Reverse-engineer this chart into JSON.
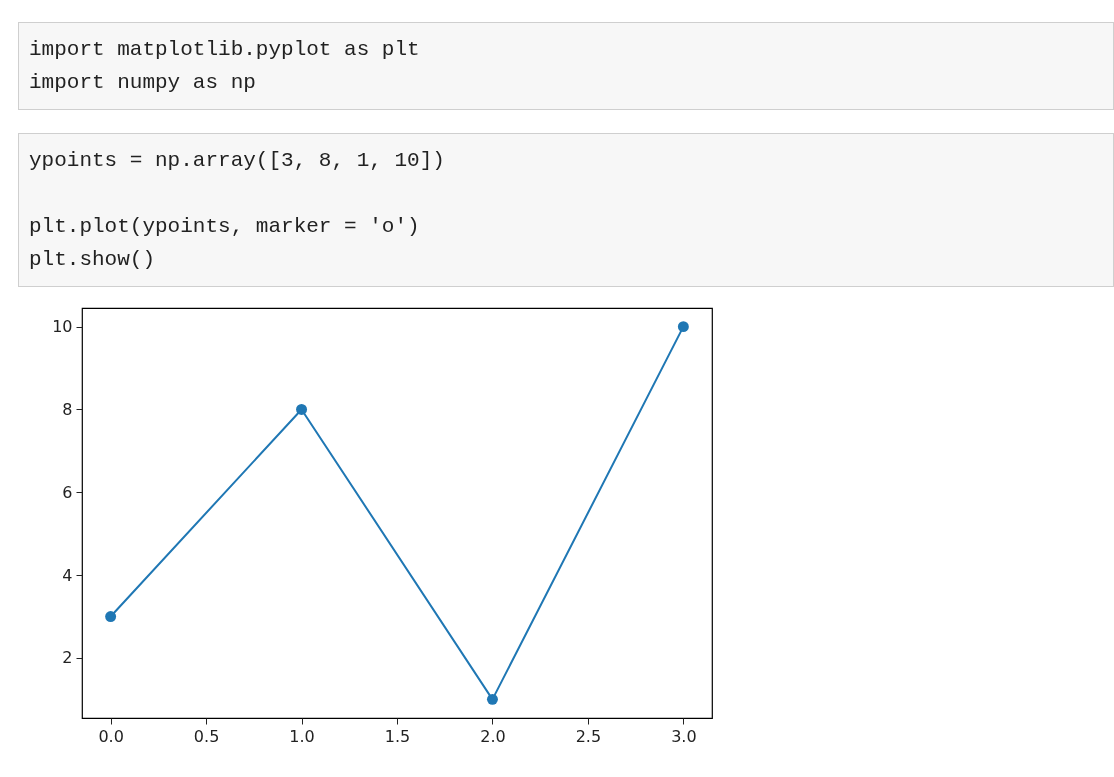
{
  "chart_data": {
    "type": "line",
    "annotations": [
      "import matplotlib.pyplot as plt\nimport numpy as np",
      "ypoints = np.array([3, 8, 1, 10])\n\nplt.plot(ypoints, marker = 'o')\nplt.show()"
    ],
    "x": [
      0,
      1,
      2,
      3
    ],
    "series": [
      {
        "color": "#1f77b4",
        "values": [
          3,
          8,
          1,
          10
        ]
      }
    ],
    "xlim": [
      -0.15,
      3.15
    ],
    "xticks": [
      {
        "value": 0,
        "label": "0.0"
      },
      {
        "value": 0.5,
        "label": "0.5"
      },
      {
        "value": 1,
        "label": "1.0"
      },
      {
        "value": 1.5,
        "label": "1.5"
      },
      {
        "value": 2,
        "label": "2.0"
      },
      {
        "value": 2.5,
        "label": "2.5"
      },
      {
        "value": 3,
        "label": "3.0"
      }
    ],
    "ylim": [
      0.55,
      10.45
    ],
    "yticks": [
      2,
      4,
      6,
      8,
      10
    ],
    "marker": "circle",
    "line_style": "solid"
  }
}
